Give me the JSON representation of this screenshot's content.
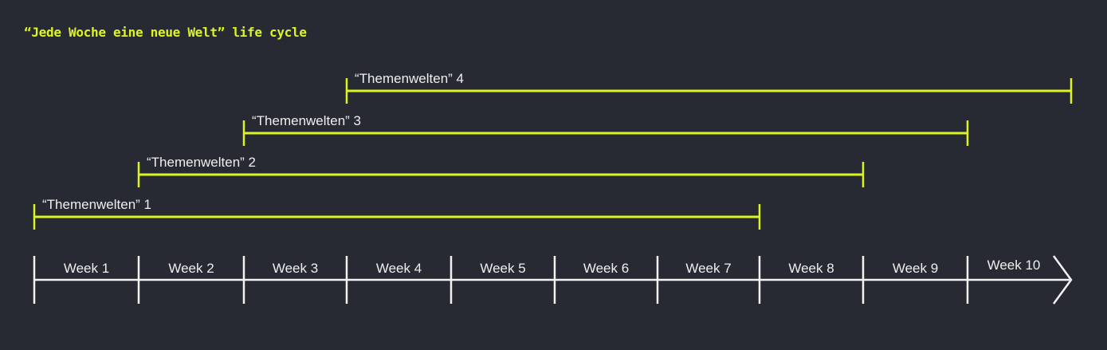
{
  "title": "“Jede Woche eine neue Welt” life cycle",
  "colors": {
    "background": "#272a33",
    "accent": "#dcf521",
    "axis": "#f2f2f2",
    "text": "#eeeeee"
  },
  "timeline": {
    "weeks": [
      "Week 1",
      "Week 2",
      "Week 3",
      "Week 4",
      "Week 5",
      "Week 6",
      "Week 7",
      "Week 8",
      "Week 9",
      "Week 10"
    ],
    "bars": [
      {
        "label": "“Themenwelten” 1",
        "start_week": 1,
        "end_week": 7
      },
      {
        "label": "“Themenwelten” 2",
        "start_week": 2,
        "end_week": 8
      },
      {
        "label": "“Themenwelten” 3",
        "start_week": 3,
        "end_week": 9
      },
      {
        "label": "“Themenwelten” 4",
        "start_week": 4,
        "end_week": 10
      }
    ]
  }
}
